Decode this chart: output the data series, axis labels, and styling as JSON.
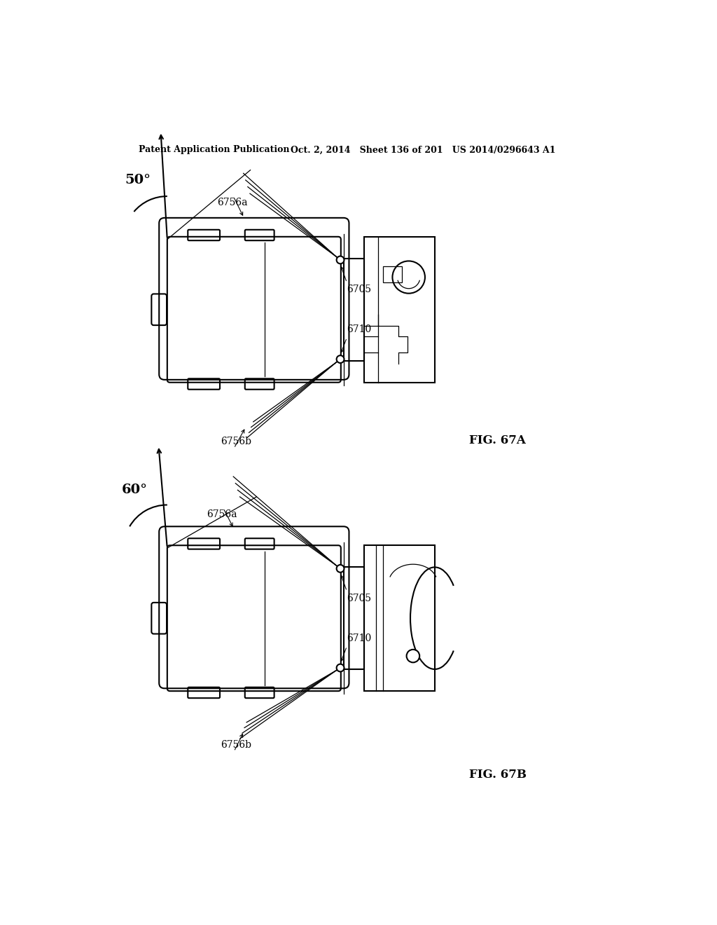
{
  "header_left": "Patent Application Publication",
  "header_mid": "Oct. 2, 2014   Sheet 136 of 201   US 2014/0296643 A1",
  "fig_a_label": "FIG. 67A",
  "fig_b_label": "FIG. 67B",
  "angle_a": "50°",
  "angle_b": "60°",
  "label_6756a": "6756a",
  "label_6756b": "6756b",
  "label_6705": "6705",
  "label_6710": "6710",
  "bg_color": "#ffffff",
  "line_color": "#000000",
  "lw": 1.5,
  "lw_thin": 0.9,
  "lw_thick": 2.0
}
